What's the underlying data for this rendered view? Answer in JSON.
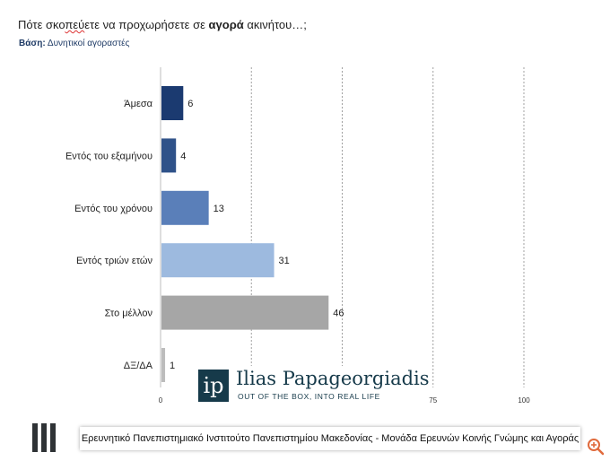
{
  "title": {
    "pre": "Πότε σκο",
    "squiggle": "πεύ",
    "mid": "ετε να προχωρήσετε σε ",
    "bold": "αγορά",
    "post": " ακινήτου…;"
  },
  "basis": {
    "label": "Βάση:",
    "value": "Δυνητικοί αγοραστές"
  },
  "chart_data": {
    "type": "bar",
    "orientation": "horizontal",
    "categories": [
      "Άμεσα",
      "Εντός του εξαμήνου",
      "Εντός του χρόνου",
      "Εντός τριών ετών",
      "Στο μέλλον",
      "ΔΞ/ΔΑ"
    ],
    "values": [
      6,
      4,
      13,
      31,
      46,
      1
    ],
    "colors": [
      "#1b3a70",
      "#2f5289",
      "#5a7fb9",
      "#9dbadf",
      "#a6a6a6",
      "#bcbcbc"
    ],
    "xlim": [
      0,
      100
    ],
    "xticks": [
      0,
      75,
      100
    ],
    "gridlines": [
      25,
      50,
      75,
      100
    ],
    "title": "",
    "xlabel": "",
    "ylabel": ""
  },
  "logo": {
    "name": "Ilias Papageorgiadis",
    "tagline": "OUT OF THE BOX, INTO REAL LIFE",
    "mark": "ip"
  },
  "footer": "Ερευνητικό Πανεπιστημιακό Ινστιτούτο Πανεπιστημίου Μακεδονίας - Μονάδα Ερευνών Κοινής Γνώμης και Αγοράς",
  "icons": {
    "zoom": "zoom-in-icon",
    "stripes": "institute-stripes-icon"
  }
}
